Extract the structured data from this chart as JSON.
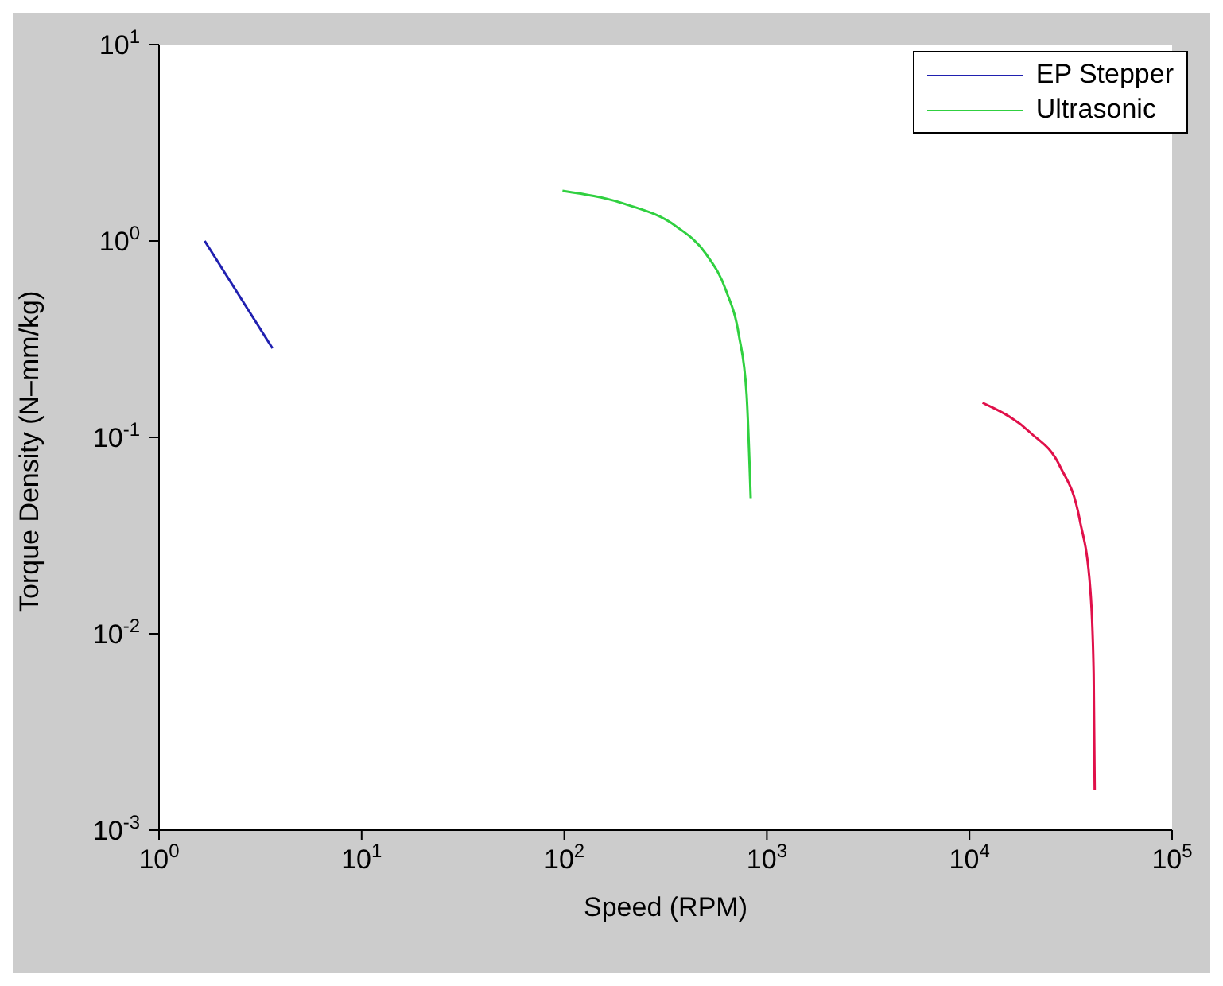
{
  "chart_data": {
    "type": "line",
    "xlabel": "Speed (RPM)",
    "ylabel": "Torque Density (N–mm/kg)",
    "log": "xy",
    "grid": false,
    "legend": "top right",
    "marker": "none",
    "line_style": "solid",
    "xlim": [
      1,
      100000
    ],
    "xticks": [
      {
        "value": 1,
        "label": "10$^{0}$"
      },
      {
        "value": 10,
        "label": "10$^{1}$"
      },
      {
        "value": 100,
        "label": "10$^{2}$"
      },
      {
        "value": 1000,
        "label": "10$^{3}$"
      },
      {
        "value": 10000,
        "label": "10$^{4}$"
      },
      {
        "value": 100000,
        "label": "10$^{5}$"
      }
    ],
    "ylim": [
      0.001,
      10
    ],
    "yticks": [
      {
        "value": 0.001,
        "label": "10$^{-3}$"
      },
      {
        "value": 0.01,
        "label": "10$^{-2}$"
      },
      {
        "value": 0.1,
        "label": "10$^{-1}$"
      },
      {
        "value": 1,
        "label": "10$^{0}$"
      },
      {
        "value": 10,
        "label": "10$^{1}$"
      }
    ],
    "series": [
      {
        "color": "#e0104a",
        "x": [
          11600,
          19900,
          28000,
          35000,
          39500,
          41000,
          41500
        ],
        "values": [
          0.15,
          0.106,
          0.071,
          0.038,
          0.0167,
          0.0063,
          0.0016
        ]
      },
      {
        "name": "EP Stepper",
        "color": "#2020b0",
        "x": [
          1.68,
          3.63
        ],
        "values": [
          1.0,
          0.284
        ]
      },
      {
        "name": "Ultrasonic",
        "color": "#30d040",
        "x": [
          98,
          200,
          355,
          500,
          630,
          728,
          794,
          832
        ],
        "values": [
          1.8,
          1.54,
          1.19,
          0.86,
          0.556,
          0.33,
          0.166,
          0.049
        ]
      }
    ]
  }
}
